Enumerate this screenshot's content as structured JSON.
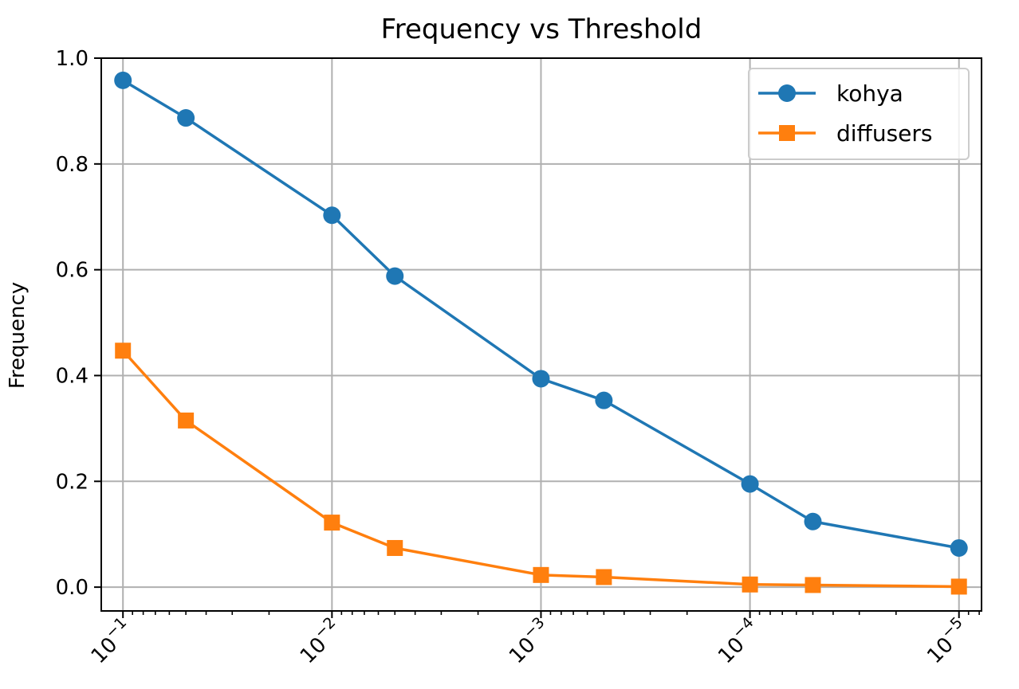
{
  "chart_data": {
    "type": "line",
    "title": "Frequency vs Threshold",
    "xlabel": "",
    "ylabel": "Frequency",
    "xscale": "log",
    "xaxis_inverted": true,
    "xlim": [
      0.127,
      7.8e-06
    ],
    "ylim": [
      -0.045,
      1.0
    ],
    "x_ticks": [
      {
        "value": 0.1,
        "base": "10",
        "exp": "−1"
      },
      {
        "value": 0.01,
        "base": "10",
        "exp": "−2"
      },
      {
        "value": 0.001,
        "base": "10",
        "exp": "−3"
      },
      {
        "value": 0.0001,
        "base": "10",
        "exp": "−4"
      },
      {
        "value": 1e-05,
        "base": "10",
        "exp": "−5"
      }
    ],
    "y_ticks": [
      "0.0",
      "0.2",
      "0.4",
      "0.6",
      "0.8",
      "1.0"
    ],
    "grid": true,
    "legend_position": "top-right",
    "x": [
      0.1,
      0.05,
      0.01,
      0.005,
      0.001,
      0.0005,
      0.0001,
      5e-05,
      1e-05
    ],
    "series": [
      {
        "name": "kohya",
        "marker": "circle",
        "color": "#1f77b4",
        "values": [
          0.958,
          0.887,
          0.703,
          0.588,
          0.394,
          0.353,
          0.195,
          0.124,
          0.074
        ]
      },
      {
        "name": "diffusers",
        "marker": "square",
        "color": "#ff7f0e",
        "values": [
          0.447,
          0.315,
          0.122,
          0.074,
          0.023,
          0.019,
          0.005,
          0.004,
          0.001
        ]
      }
    ]
  }
}
